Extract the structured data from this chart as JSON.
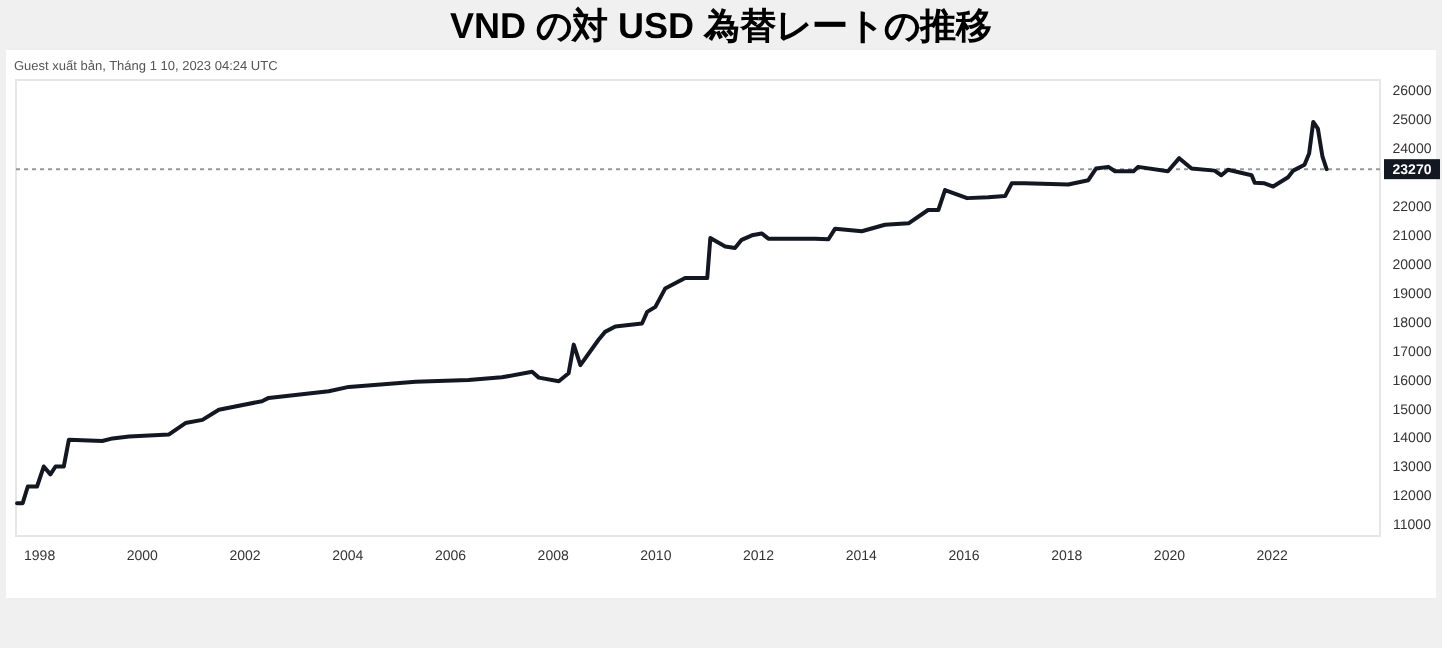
{
  "chart_data": {
    "type": "line",
    "title": "VND の対 USD 為替レートの推移",
    "subtitle": "Guest xuất bản, Tháng 1 10, 2023 04:24 UTC",
    "x": [
      1997.56,
      1997.67,
      1997.77,
      1997.95,
      1998.08,
      1998.21,
      1998.31,
      1998.47,
      1998.57,
      1999.22,
      1999.42,
      1999.74,
      2000.52,
      2000.84,
      2001.17,
      2001.49,
      2002.33,
      2002.46,
      2003.63,
      2004.02,
      2005.32,
      2006.35,
      2007.0,
      2007.59,
      2007.72,
      2008.11,
      2008.3,
      2008.4,
      2008.53,
      2008.88,
      2009.01,
      2009.21,
      2009.73,
      2009.83,
      2009.99,
      2010.18,
      2010.57,
      2011.0,
      2011.06,
      2011.35,
      2011.54,
      2011.67,
      2011.87,
      2012.06,
      2012.19,
      2013.1,
      2013.36,
      2013.49,
      2014.01,
      2014.46,
      2014.92,
      2015.3,
      2015.5,
      2015.63,
      2016.06,
      2016.47,
      2016.8,
      2016.93,
      2017.18,
      2018.03,
      2018.42,
      2018.57,
      2018.81,
      2018.94,
      2019.3,
      2019.39,
      2019.97,
      2020.19,
      2020.43,
      2020.88,
      2021.01,
      2021.14,
      2021.6,
      2021.66,
      2021.85,
      2022.02,
      2022.31,
      2022.41,
      2022.63,
      2022.72,
      2022.8,
      2022.89,
      2022.98,
      2023.06
    ],
    "series": [
      {
        "color": "#131722",
        "values": [
          11735,
          11735,
          12310,
          12310,
          13000,
          12730,
          13000,
          13000,
          13925,
          13880,
          13970,
          14040,
          14110,
          14500,
          14610,
          14960,
          15255,
          15370,
          15600,
          15750,
          15925,
          15990,
          16080,
          16270,
          16070,
          15945,
          16220,
          17210,
          16500,
          17370,
          17650,
          17835,
          17940,
          18340,
          18515,
          19145,
          19510,
          19510,
          20890,
          20600,
          20550,
          20830,
          20985,
          21050,
          20870,
          20870,
          20850,
          21215,
          21125,
          21350,
          21400,
          21860,
          21860,
          22550,
          22270,
          22300,
          22340,
          22780,
          22780,
          22740,
          22890,
          23290,
          23350,
          23200,
          23200,
          23350,
          23200,
          23650,
          23290,
          23220,
          23060,
          23250,
          23060,
          22800,
          22780,
          22670,
          22990,
          23220,
          23420,
          23810,
          24900,
          24670,
          23700,
          23270
        ]
      }
    ],
    "xlim": [
      1997.54,
      2024.1
    ],
    "xticks": [
      1998,
      2000,
      2002,
      2004,
      2006,
      2008,
      2010,
      2012,
      2014,
      2016,
      2018,
      2020,
      2022
    ],
    "ylim": [
      10600,
      26350
    ],
    "yticks": [
      11000,
      12000,
      13000,
      14000,
      15000,
      16000,
      17000,
      18000,
      19000,
      20000,
      21000,
      22000,
      24000,
      25000,
      26000
    ],
    "ref_lines": [
      {
        "axis": "y",
        "value": 23270,
        "label": "23270",
        "color": "#9598a1",
        "line_style": "dotted"
      }
    ],
    "grid": false,
    "line_style": "solid",
    "marker": "none"
  }
}
